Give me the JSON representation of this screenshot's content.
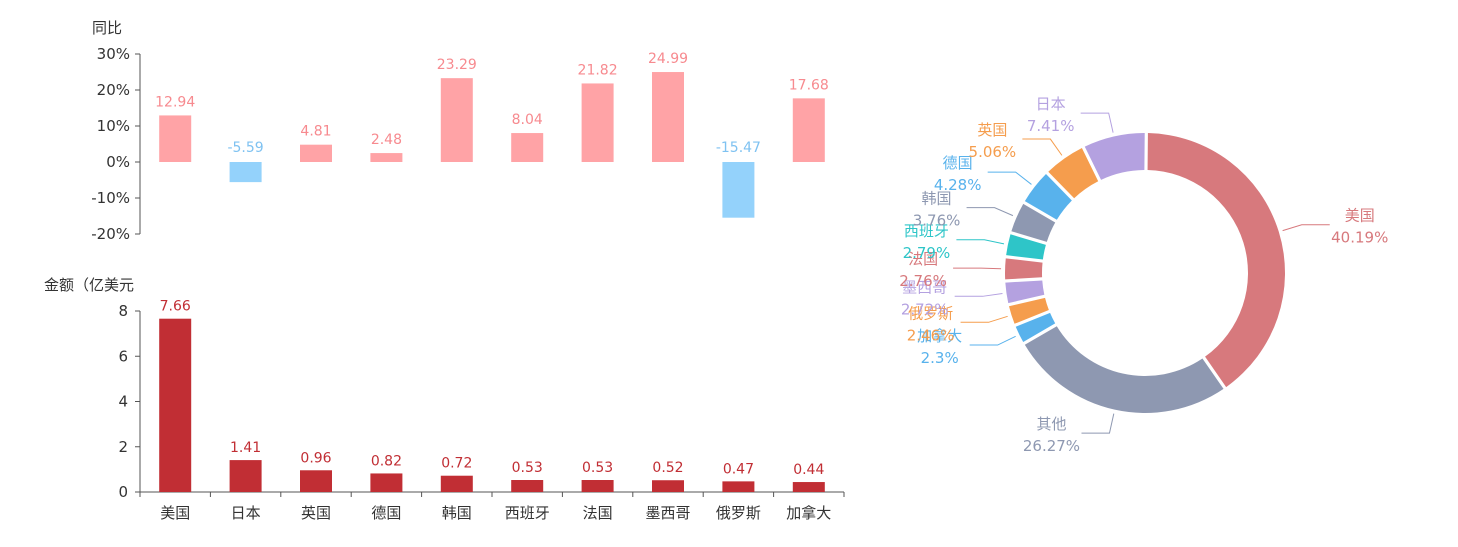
{
  "chart_data": [
    {
      "type": "bar",
      "ylabel": "同比",
      "unit": "%",
      "ylim": [
        -20,
        30
      ],
      "yticks": [
        30,
        20,
        10,
        0,
        -10,
        -20
      ],
      "yticks_label": [
        "30%",
        "20%",
        "10%",
        "0%",
        "-10%",
        "-20%"
      ],
      "categories": [
        "美国",
        "日本",
        "英国",
        "德国",
        "韩国",
        "西班牙",
        "法国",
        "墨西哥",
        "俄罗斯",
        "加拿大"
      ],
      "values": [
        12.94,
        -5.59,
        4.81,
        2.48,
        23.29,
        8.04,
        21.82,
        24.99,
        -15.47,
        17.68
      ],
      "value_labels": [
        "12.94",
        "-5.59",
        "4.81",
        "2.48",
        "23.29",
        "8.04",
        "21.82",
        "24.99",
        "-15.47",
        "17.68"
      ],
      "colors": {
        "positive": "#ffa3a6",
        "negative": "#94d2fb",
        "label_positive": "#f78a8f",
        "label_negative": "#7fc2f1"
      }
    },
    {
      "type": "bar",
      "ylabel": "金额（亿美元",
      "ylim": [
        0,
        8
      ],
      "yticks": [
        8,
        6,
        4,
        2,
        0
      ],
      "categories": [
        "美国",
        "日本",
        "英国",
        "德国",
        "韩国",
        "西班牙",
        "法国",
        "墨西哥",
        "俄罗斯",
        "加拿大"
      ],
      "values": [
        7.66,
        1.41,
        0.96,
        0.82,
        0.72,
        0.53,
        0.53,
        0.52,
        0.47,
        0.44
      ],
      "value_labels": [
        "7.66",
        "1.41",
        "0.96",
        "0.82",
        "0.72",
        "0.53",
        "0.53",
        "0.52",
        "0.47",
        "0.44"
      ],
      "colors": {
        "bar": "#c12e34",
        "label": "#c12e34"
      }
    },
    {
      "type": "pie",
      "variant": "donut",
      "slices": [
        {
          "name": "美国",
          "value": 40.19,
          "label": "40.19%",
          "color": "#d7797d"
        },
        {
          "name": "其他",
          "value": 26.27,
          "label": "26.27%",
          "color": "#8e98b1"
        },
        {
          "name": "加拿大",
          "value": 2.3,
          "label": "2.3%",
          "color": "#58b2ec"
        },
        {
          "name": "俄罗斯",
          "value": 2.46,
          "label": "2.46%",
          "color": "#f59d4d"
        },
        {
          "name": "墨西哥",
          "value": 2.72,
          "label": "2.72%",
          "color": "#b4a1e0"
        },
        {
          "name": "法国",
          "value": 2.76,
          "label": "2.76%",
          "color": "#d7797d"
        },
        {
          "name": "西班牙",
          "value": 2.79,
          "label": "2.79%",
          "color": "#2ec5c8"
        },
        {
          "name": "韩国",
          "value": 3.76,
          "label": "3.76%",
          "color": "#8e98b1"
        },
        {
          "name": "德国",
          "value": 4.28,
          "label": "4.28%",
          "color": "#58b2ec"
        },
        {
          "name": "英国",
          "value": 5.06,
          "label": "5.06%",
          "color": "#f59d4d"
        },
        {
          "name": "日本",
          "value": 7.41,
          "label": "7.41%",
          "color": "#b4a1e0"
        }
      ]
    }
  ],
  "colors": {
    "axis": "#555555",
    "tick_text": "#333333"
  }
}
